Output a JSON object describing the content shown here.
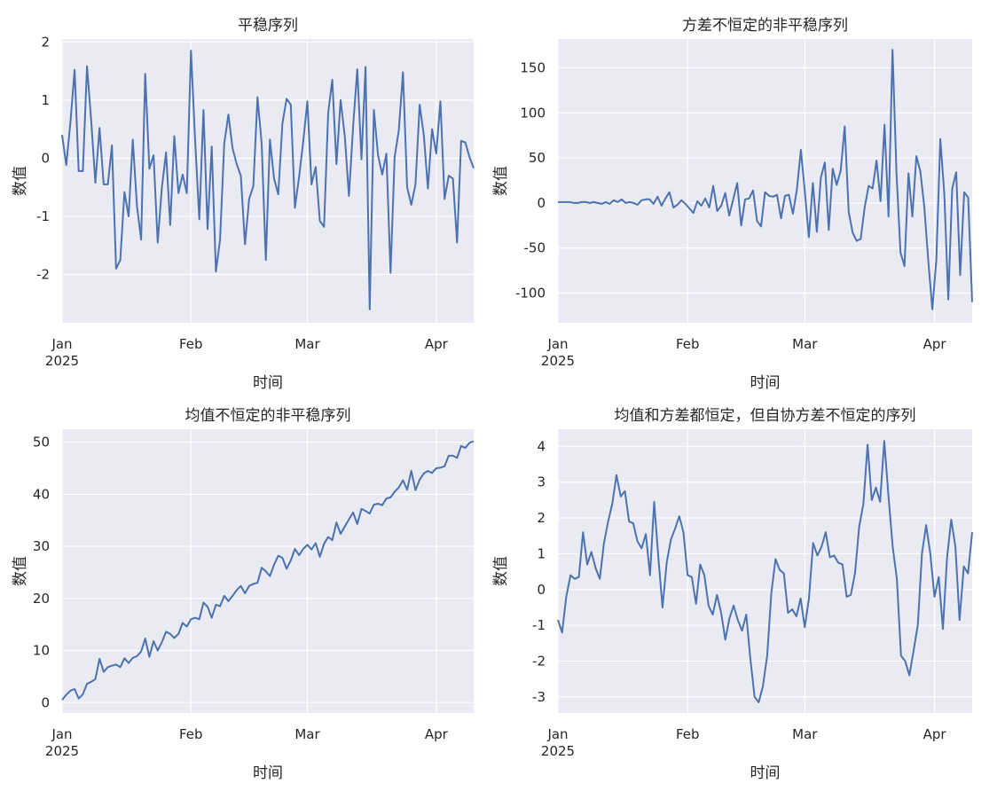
{
  "figure": {
    "background": "#ffffff",
    "axes_background": "#eaeaf2",
    "grid_color": "#ffffff",
    "line_color": "#4c72b0",
    "text_color": "#262626"
  },
  "chart_data": [
    {
      "type": "line",
      "title": "平稳序列",
      "xlabel": "时间",
      "ylabel": "数值",
      "x_start": "2025-01-01",
      "x_end": "2025-04-10",
      "xlim": [
        "2025-01-01",
        "2025-04-10"
      ],
      "ylim": [
        -2.83,
        2.05
      ],
      "x_ticks": [
        {
          "date": "2025-01-01",
          "label": "Jan",
          "sublabel": "2025"
        },
        {
          "date": "2025-02-01",
          "label": "Feb",
          "sublabel": ""
        },
        {
          "date": "2025-03-01",
          "label": "Mar",
          "sublabel": ""
        },
        {
          "date": "2025-04-01",
          "label": "Apr",
          "sublabel": ""
        }
      ],
      "y_ticks": [
        {
          "v": -2,
          "label": "-2"
        },
        {
          "v": -1,
          "label": "-1"
        },
        {
          "v": 0,
          "label": "0"
        },
        {
          "v": 1,
          "label": "1"
        },
        {
          "v": 2,
          "label": "2"
        }
      ],
      "grid": true,
      "series": [
        {
          "values": [
            0.4,
            -0.12,
            0.62,
            1.52,
            -0.22,
            -0.22,
            1.58,
            0.65,
            -0.42,
            0.52,
            -0.45,
            -0.45,
            0.22,
            -1.9,
            -1.75,
            -0.58,
            -1.0,
            0.32,
            -0.82,
            -1.4,
            1.45,
            -0.18,
            0.05,
            -1.45,
            -0.5,
            0.1,
            -1.15,
            0.38,
            -0.6,
            -0.28,
            -0.6,
            1.85,
            0.3,
            -1.05,
            0.83,
            -1.22,
            0.2,
            -1.95,
            -1.4,
            0.25,
            0.75,
            0.17,
            -0.1,
            -0.3,
            -1.48,
            -0.7,
            -0.48,
            1.05,
            0.25,
            -1.75,
            0.32,
            -0.35,
            -0.62,
            0.6,
            1.02,
            0.92,
            -0.85,
            -0.32,
            0.28,
            0.98,
            -0.45,
            -0.15,
            -1.08,
            -1.18,
            0.78,
            1.35,
            -0.1,
            1.0,
            0.38,
            -0.65,
            0.55,
            1.53,
            -0.02,
            1.57,
            -2.6,
            0.83,
            0.05,
            -0.28,
            0.08,
            -1.97,
            0.02,
            0.48,
            1.48,
            -0.5,
            -0.8,
            -0.45,
            0.92,
            0.4,
            -0.52,
            0.5,
            0.08,
            0.98,
            -0.7,
            -0.3,
            -0.35,
            -1.45,
            0.3,
            0.27,
            0.02,
            -0.17
          ]
        }
      ]
    },
    {
      "type": "line",
      "title": "方差不恒定的非平稳序列",
      "xlabel": "时间",
      "ylabel": "数值",
      "x_start": "2025-01-01",
      "x_end": "2025-04-10",
      "xlim": [
        "2025-01-01",
        "2025-04-10"
      ],
      "ylim": [
        -133,
        182
      ],
      "x_ticks": [
        {
          "date": "2025-01-01",
          "label": "Jan",
          "sublabel": "2025"
        },
        {
          "date": "2025-02-01",
          "label": "Feb",
          "sublabel": ""
        },
        {
          "date": "2025-03-01",
          "label": "Mar",
          "sublabel": ""
        },
        {
          "date": "2025-04-01",
          "label": "Apr",
          "sublabel": ""
        }
      ],
      "y_ticks": [
        {
          "v": -100,
          "label": "-100"
        },
        {
          "v": -50,
          "label": "-50"
        },
        {
          "v": 0,
          "label": "0"
        },
        {
          "v": 50,
          "label": "50"
        },
        {
          "v": 100,
          "label": "100"
        },
        {
          "v": 150,
          "label": "150"
        }
      ],
      "grid": true,
      "series": [
        {
          "values": [
            1,
            1,
            1,
            1,
            0,
            0,
            1,
            1,
            0,
            1,
            0,
            -1,
            1,
            -1,
            3,
            1,
            4,
            0,
            1,
            0,
            -2,
            3,
            4,
            4,
            -1,
            7,
            -3,
            5,
            12,
            -5,
            -2,
            3,
            -1,
            -6,
            -11,
            2,
            -3,
            5,
            -5,
            19,
            -9,
            -3,
            11,
            -14,
            4,
            22,
            -25,
            4,
            5,
            14,
            -20,
            -26,
            12,
            8,
            7,
            9,
            -17,
            8,
            9,
            -12,
            15,
            59,
            12,
            -38,
            22,
            -32,
            28,
            45,
            -30,
            38,
            20,
            36,
            85,
            -10,
            -33,
            -42,
            -40,
            -5,
            19,
            16,
            47,
            2,
            87,
            -15,
            170,
            33,
            -55,
            -70,
            33,
            -15,
            52,
            35,
            -5,
            -65,
            -118,
            -63,
            71,
            10,
            -107,
            16,
            34,
            -80,
            12,
            6,
            -110
          ]
        }
      ]
    },
    {
      "type": "line",
      "title": "均值不恒定的非平稳序列",
      "xlabel": "时间",
      "ylabel": "数值",
      "x_start": "2025-01-01",
      "x_end": "2025-04-10",
      "xlim": [
        "2025-01-01",
        "2025-04-10"
      ],
      "ylim": [
        -2,
        52.5
      ],
      "x_ticks": [
        {
          "date": "2025-01-01",
          "label": "Jan",
          "sublabel": "2025"
        },
        {
          "date": "2025-02-01",
          "label": "Feb",
          "sublabel": ""
        },
        {
          "date": "2025-03-01",
          "label": "Mar",
          "sublabel": ""
        },
        {
          "date": "2025-04-01",
          "label": "Apr",
          "sublabel": ""
        }
      ],
      "y_ticks": [
        {
          "v": 0,
          "label": "0"
        },
        {
          "v": 10,
          "label": "10"
        },
        {
          "v": 20,
          "label": "20"
        },
        {
          "v": 30,
          "label": "30"
        },
        {
          "v": 40,
          "label": "40"
        },
        {
          "v": 50,
          "label": "50"
        }
      ],
      "grid": true,
      "series": [
        {
          "values": [
            0.5,
            1.5,
            2.3,
            2.6,
            0.8,
            1.6,
            3.6,
            4.0,
            4.5,
            8.4,
            5.9,
            6.8,
            7.1,
            7.3,
            6.8,
            8.5,
            7.6,
            8.6,
            8.9,
            9.8,
            12.3,
            8.8,
            11.8,
            10.0,
            11.6,
            13.6,
            13.2,
            12.4,
            13.2,
            15.3,
            14.6,
            16.0,
            16.3,
            16.0,
            19.2,
            18.4,
            16.3,
            18.8,
            18.5,
            20.5,
            19.5,
            20.5,
            21.6,
            22.4,
            21.0,
            22.4,
            22.8,
            23.0,
            25.9,
            25.2,
            24.3,
            26.5,
            28.2,
            27.8,
            25.7,
            27.3,
            29.5,
            28.3,
            29.5,
            30.3,
            29.4,
            30.6,
            28.0,
            30.5,
            31.8,
            31.2,
            34.6,
            32.4,
            33.8,
            35.2,
            36.5,
            34.3,
            37.2,
            36.8,
            36.3,
            38.0,
            38.2,
            37.9,
            39.2,
            39.4,
            40.5,
            41.3,
            42.7,
            40.9,
            44.5,
            40.8,
            42.8,
            44.0,
            44.5,
            44.1,
            45.0,
            45.1,
            45.4,
            47.4,
            47.4,
            47.0,
            49.3,
            48.9,
            49.9,
            50.2
          ]
        }
      ]
    },
    {
      "type": "line",
      "title": "均值和方差都恒定，但自协方差不恒定的序列",
      "xlabel": "时间",
      "ylabel": "数值",
      "x_start": "2025-01-01",
      "x_end": "2025-04-10",
      "xlim": [
        "2025-01-01",
        "2025-04-10"
      ],
      "ylim": [
        -3.45,
        4.48
      ],
      "x_ticks": [
        {
          "date": "2025-01-01",
          "label": "Jan",
          "sublabel": "2025"
        },
        {
          "date": "2025-02-01",
          "label": "Feb",
          "sublabel": ""
        },
        {
          "date": "2025-03-01",
          "label": "Mar",
          "sublabel": ""
        },
        {
          "date": "2025-04-01",
          "label": "Apr",
          "sublabel": ""
        }
      ],
      "y_ticks": [
        {
          "v": -3,
          "label": "-3"
        },
        {
          "v": -2,
          "label": "-2"
        },
        {
          "v": -1,
          "label": "-1"
        },
        {
          "v": 0,
          "label": "0"
        },
        {
          "v": 1,
          "label": "1"
        },
        {
          "v": 2,
          "label": "2"
        },
        {
          "v": 3,
          "label": "3"
        },
        {
          "v": 4,
          "label": "4"
        }
      ],
      "grid": true,
      "series": [
        {
          "values": [
            -0.85,
            -1.2,
            -0.2,
            0.4,
            0.3,
            0.35,
            1.6,
            0.7,
            1.05,
            0.6,
            0.3,
            1.3,
            1.9,
            2.4,
            3.2,
            2.6,
            2.75,
            1.9,
            1.85,
            1.35,
            1.15,
            1.55,
            0.4,
            2.45,
            0.9,
            -0.5,
            0.75,
            1.4,
            1.7,
            2.05,
            1.6,
            0.4,
            0.35,
            -0.4,
            0.7,
            0.4,
            -0.45,
            -0.7,
            -0.15,
            -0.65,
            -1.4,
            -0.8,
            -0.45,
            -0.85,
            -1.15,
            -0.7,
            -1.95,
            -3.0,
            -3.15,
            -2.7,
            -1.85,
            -0.1,
            0.85,
            0.55,
            0.45,
            -0.65,
            -0.55,
            -0.75,
            -0.25,
            -1.05,
            -0.25,
            1.3,
            0.95,
            1.2,
            1.6,
            0.9,
            0.95,
            0.75,
            0.7,
            -0.2,
            -0.15,
            0.45,
            1.75,
            2.4,
            4.05,
            2.5,
            2.85,
            2.45,
            4.15,
            2.6,
            1.2,
            0.3,
            -1.85,
            -2.0,
            -2.4,
            -1.7,
            -1.0,
            1.0,
            1.8,
            1.0,
            -0.2,
            0.35,
            -1.1,
            0.9,
            1.95,
            1.2,
            -0.85,
            0.65,
            0.45,
            1.6
          ]
        }
      ]
    }
  ]
}
